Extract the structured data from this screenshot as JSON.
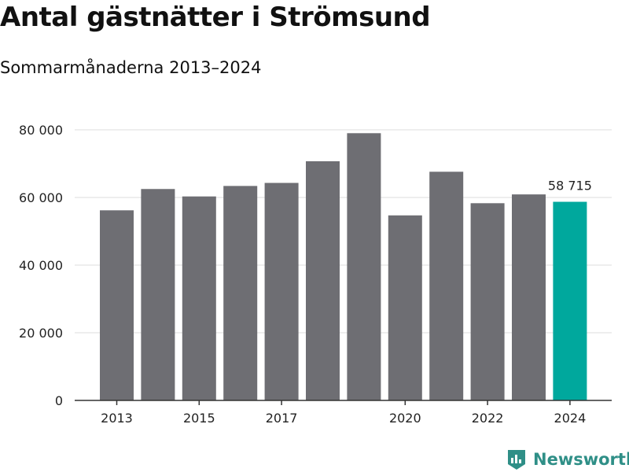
{
  "chart_data": {
    "type": "bar",
    "title": "Antal gästnätter i Strömsund",
    "subtitle": "Sommarmånaderna 2013–2024",
    "categories": [
      "2013",
      "2014",
      "2015",
      "2016",
      "2017",
      "2018",
      "2019",
      "2020",
      "2021",
      "2022",
      "2023",
      "2024"
    ],
    "values": [
      56200,
      62500,
      60300,
      63400,
      64300,
      70700,
      79000,
      54700,
      67600,
      58300,
      60900,
      58715
    ],
    "x_tick_labels": [
      "2013",
      "2015",
      "2017",
      "2020",
      "2022",
      "2024"
    ],
    "y_ticks": [
      0,
      20000,
      40000,
      60000,
      80000
    ],
    "y_tick_labels": [
      "0",
      "20 000",
      "40 000",
      "60 000",
      "80 000"
    ],
    "ylim": [
      0,
      80000
    ],
    "xlabel": "",
    "ylabel": "",
    "grid": true,
    "highlight": {
      "category": "2024",
      "label": "58 715"
    },
    "colors": {
      "bar": "#6e6e73",
      "highlight": "#00a89d",
      "grid": "#dcdcdc",
      "axis": "#333333"
    }
  },
  "brand": {
    "name": "Newsworthy",
    "icon": "newsworthy-logo-icon"
  }
}
